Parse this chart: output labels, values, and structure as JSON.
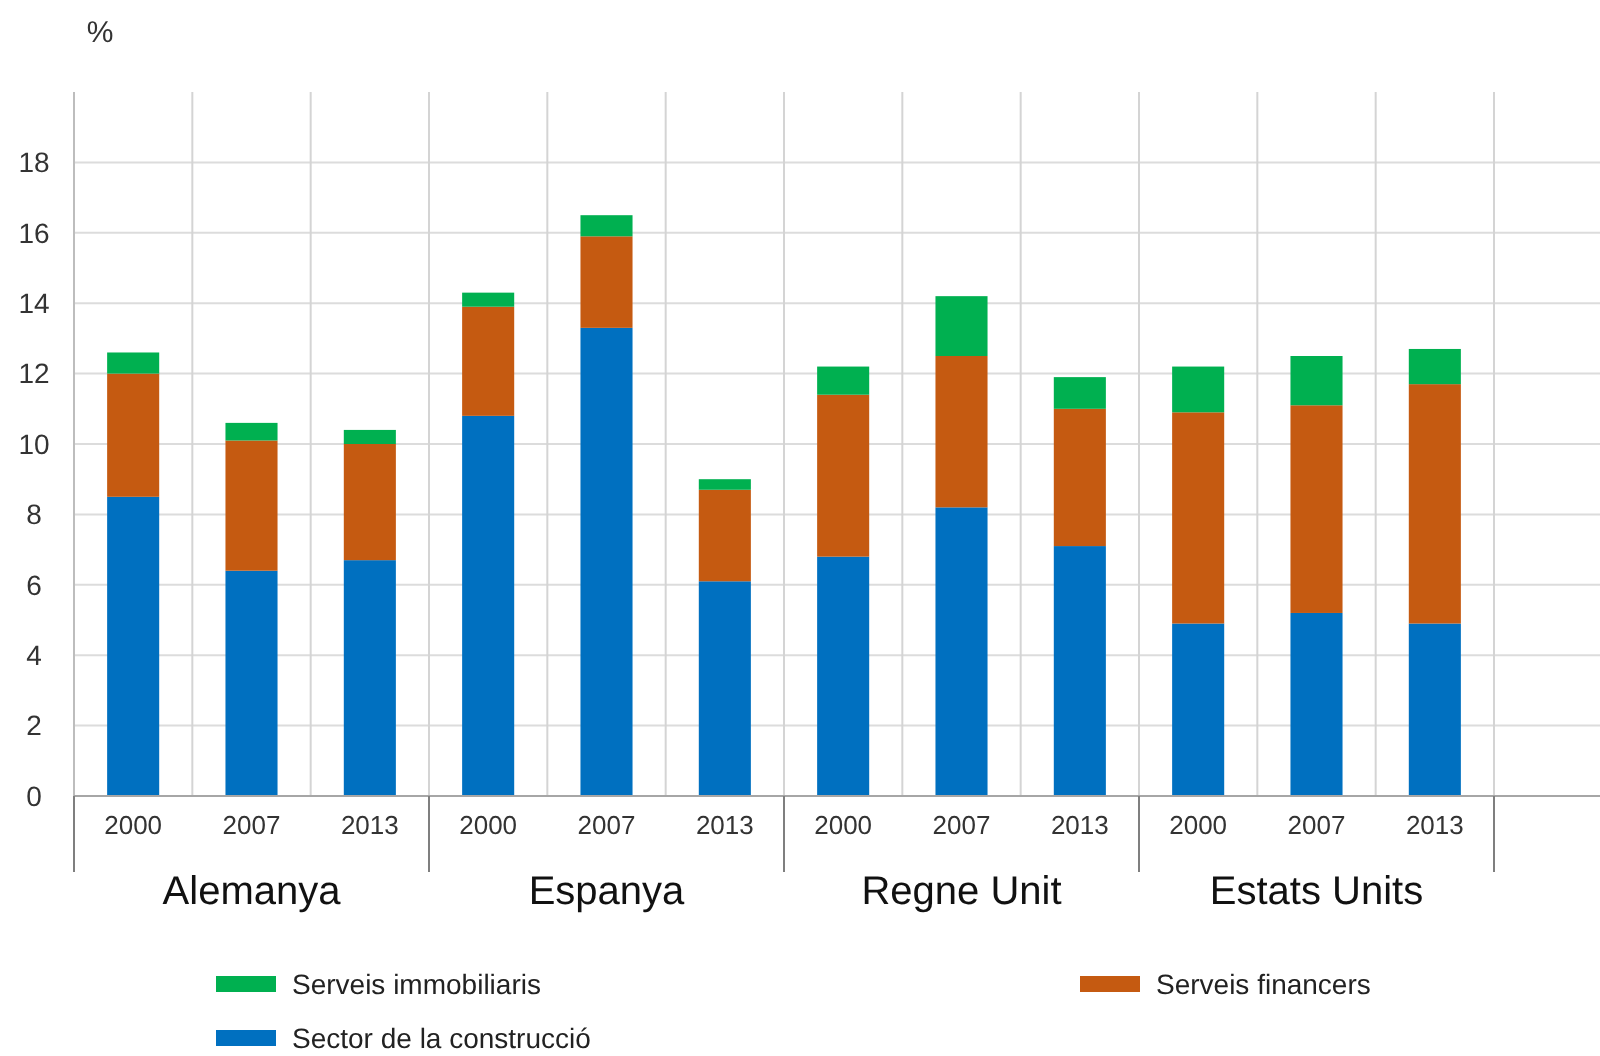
{
  "chart_data": {
    "type": "bar",
    "stacked": true,
    "ylabel": "%",
    "categories": [
      "2000",
      "2007",
      "2013",
      "2000",
      "2007",
      "2013",
      "2000",
      "2007",
      "2013",
      "2000",
      "2007",
      "2013"
    ],
    "series": [
      {
        "name": "Sector de la construcció",
        "color": "#0070c0",
        "values": [
          8.5,
          6.4,
          6.7,
          10.8,
          13.3,
          6.1,
          6.8,
          8.2,
          7.1,
          4.9,
          5.2,
          4.9
        ]
      },
      {
        "name": "Serveis financers",
        "color": "#c55a11",
        "values": [
          3.5,
          3.7,
          3.3,
          3.1,
          2.6,
          2.6,
          4.6,
          4.3,
          3.9,
          6.0,
          5.9,
          6.8
        ]
      },
      {
        "name": "Serveis immobiliaris",
        "color": "#00b050",
        "values": [
          0.6,
          0.5,
          0.4,
          0.4,
          0.6,
          0.3,
          0.8,
          1.7,
          0.9,
          1.3,
          1.4,
          1.0
        ]
      }
    ],
    "ylim": [
      0,
      20
    ],
    "yticks": [
      0,
      2,
      4,
      6,
      8,
      10,
      12,
      14,
      16,
      18
    ],
    "grid": true,
    "legend": "bottom",
    "annotations": [
      "Alemanya",
      "Espanya",
      "Regne Unit",
      "Estats Units"
    ]
  }
}
